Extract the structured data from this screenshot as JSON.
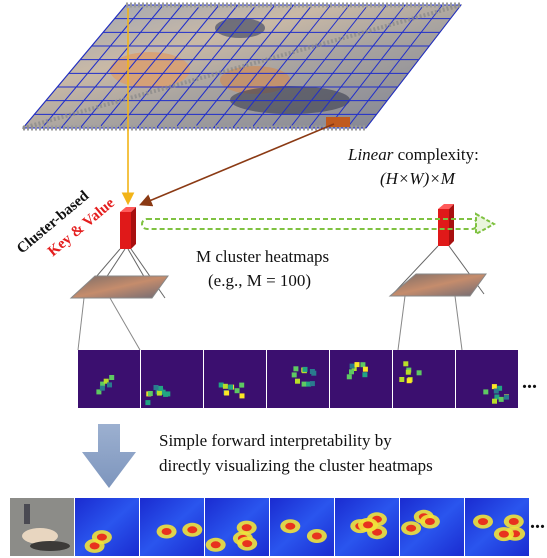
{
  "labels": {
    "cluster_based": "Cluster-based",
    "key_value": "Key & Value",
    "linear_word": "Linear",
    "complexity_word": " complexity:",
    "complexity_formula": "(H×W)×M",
    "heatmaps_title": "M cluster heatmaps",
    "heatmaps_example": "(e.g., M = 100)",
    "ellipsis": "...",
    "interpretability_line1": "Simple forward interpretability by",
    "interpretability_line2": "directly visualizing the cluster heatmaps"
  },
  "colors": {
    "grid_blue": "#1f2dcc",
    "arrow_yellow": "#f2b418",
    "arrow_brown": "#8b3a14",
    "token_red": "#e01919",
    "dashed_green": "#7fc241",
    "label_red": "#e41e1e",
    "heatmap_bg": "#3b0f6f",
    "big_arrow": "#8aa2c6"
  },
  "heatmap_count_shown": 7,
  "overlay_count_shown": 8
}
